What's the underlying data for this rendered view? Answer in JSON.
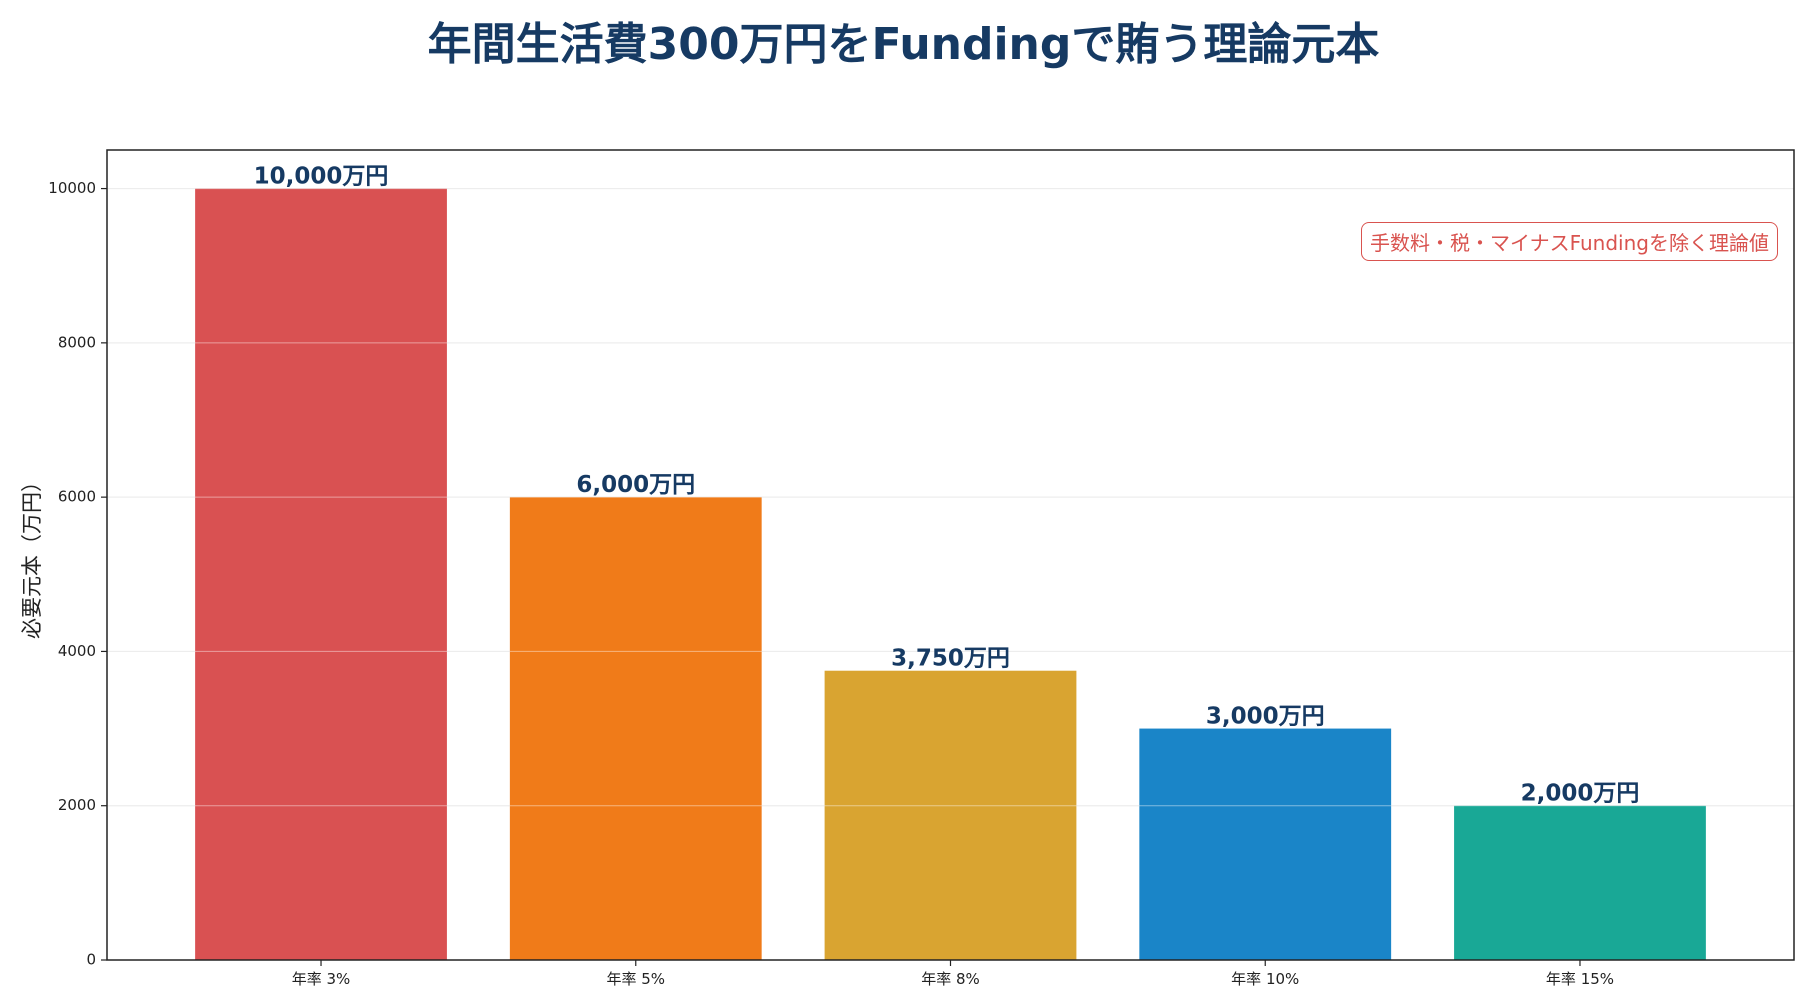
{
  "chart_data": {
    "type": "bar",
    "title": "年間生活費300万円をFundingで賄う理論元本",
    "ylabel": "必要元本（万円）",
    "xlabel": "",
    "categories": [
      "年率 3%",
      "年率 5%",
      "年率 8%",
      "年率 10%",
      "年率 15%"
    ],
    "values": [
      10000,
      6000,
      3750,
      3000,
      2000
    ],
    "value_labels": [
      "10,000万円",
      "6,000万円",
      "3,750万円",
      "3,000万円",
      "2,000万円"
    ],
    "colors": [
      "#d95152",
      "#f07b19",
      "#d9a431",
      "#1a85c8",
      "#19a896"
    ],
    "ylim": [
      0,
      10500
    ],
    "yticks": [
      0,
      2000,
      4000,
      6000,
      8000,
      10000
    ],
    "grid": true,
    "annotation": "手数料・税・マイナスFundingを除く理論値"
  }
}
